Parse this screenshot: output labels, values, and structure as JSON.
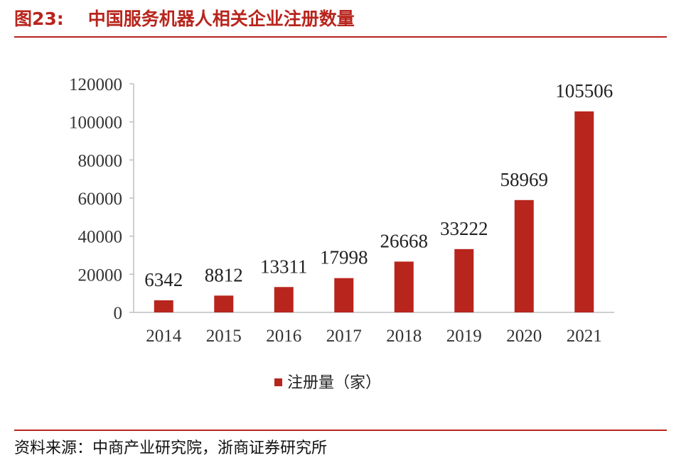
{
  "header": {
    "figure_label": "图23:",
    "title": "中国服务机器人相关企业注册数量"
  },
  "footer": {
    "source": "资料来源：中商产业研究院，浙商证券研究所"
  },
  "colors": {
    "accent": "#b8251d",
    "bar": "#b8251d",
    "axis": "#bfbfbf"
  },
  "chart_data": {
    "type": "bar",
    "categories": [
      "2014",
      "2015",
      "2016",
      "2017",
      "2018",
      "2019",
      "2020",
      "2021"
    ],
    "series": [
      {
        "name": "注册量（家）",
        "values": [
          6342,
          8812,
          13311,
          17998,
          26668,
          33222,
          58969,
          105506
        ]
      }
    ],
    "yticks": [
      "0",
      "20000",
      "40000",
      "60000",
      "80000",
      "100000",
      "120000"
    ],
    "ylim": [
      0,
      120000
    ],
    "grid": false,
    "legend": "bottom-center",
    "data_labels": true
  }
}
